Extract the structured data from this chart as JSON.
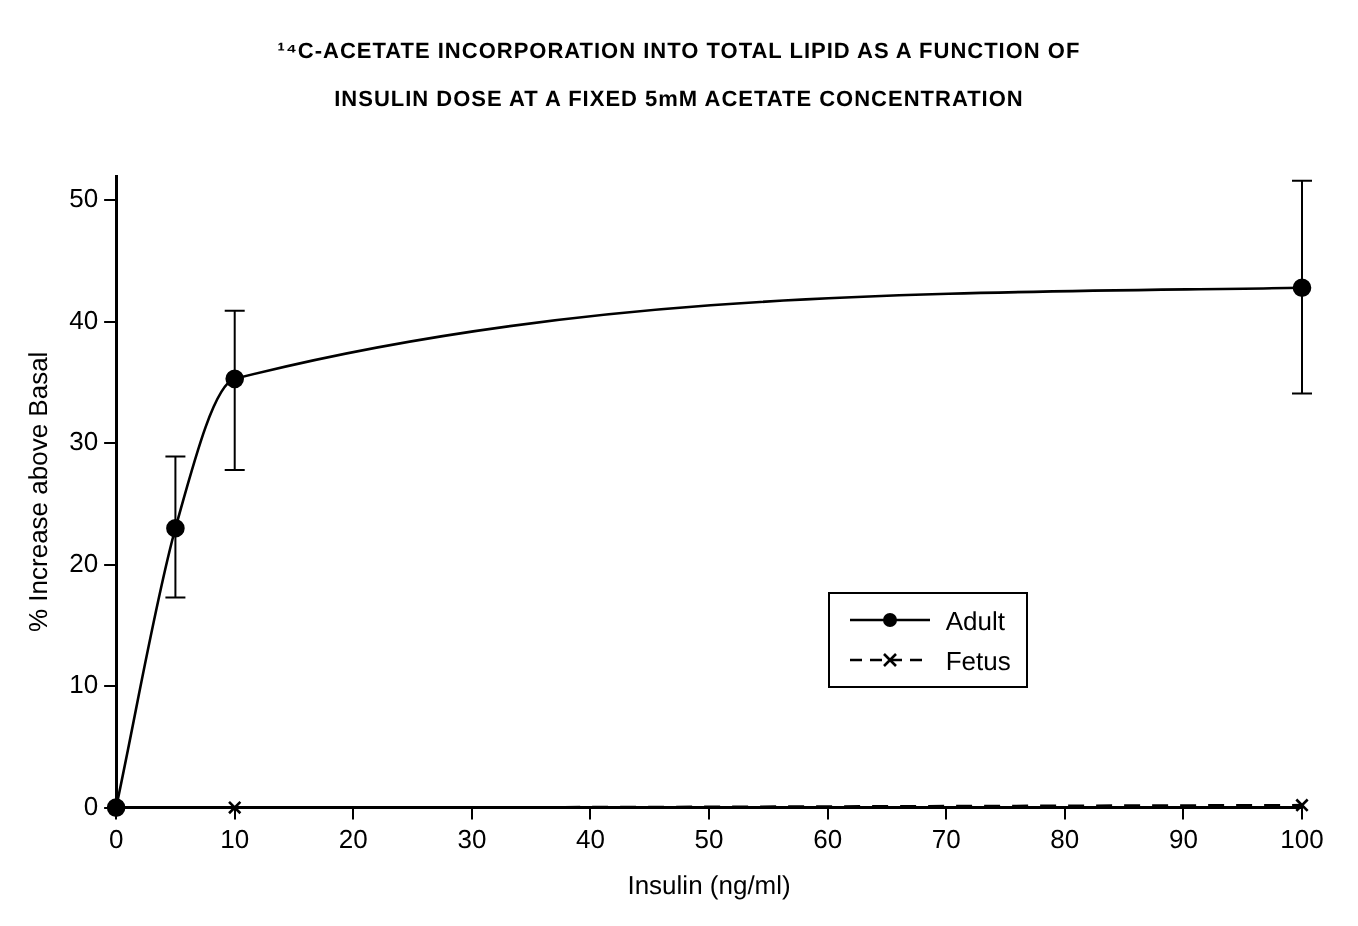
{
  "chart_data": {
    "type": "line",
    "title": "¹⁴C-ACETATE INCORPORATION INTO TOTAL LIPID AS A FUNCTION OF INSULIN DOSE AT A FIXED 5mM ACETATE CONCENTRATION",
    "xlabel": "Insulin (ng/ml)",
    "ylabel": "% Increase above Basal",
    "xlim": [
      0,
      100
    ],
    "xticks": [
      0,
      10,
      20,
      30,
      40,
      50,
      60,
      70,
      80,
      90,
      100
    ],
    "ylim": [
      0,
      52
    ],
    "yticks": [
      0,
      10,
      20,
      30,
      40,
      50
    ],
    "grid": false,
    "legend": "bottom right",
    "series": [
      {
        "name": "Adult",
        "color": "#000000",
        "marker": "circle",
        "line_style": "solid",
        "x": [
          0,
          5,
          10,
          100
        ],
        "values": [
          0,
          23,
          35.3,
          42.8
        ],
        "errors": [
          null,
          [
            17.3,
            28.9
          ],
          [
            27.8,
            40.9
          ],
          [
            34.1,
            51.6
          ]
        ]
      },
      {
        "name": "Fetus",
        "color": "#000000",
        "marker": "cross",
        "line_style": "dashed",
        "x": [
          0,
          10,
          100
        ],
        "values": [
          0,
          0,
          0.2
        ]
      }
    ]
  }
}
